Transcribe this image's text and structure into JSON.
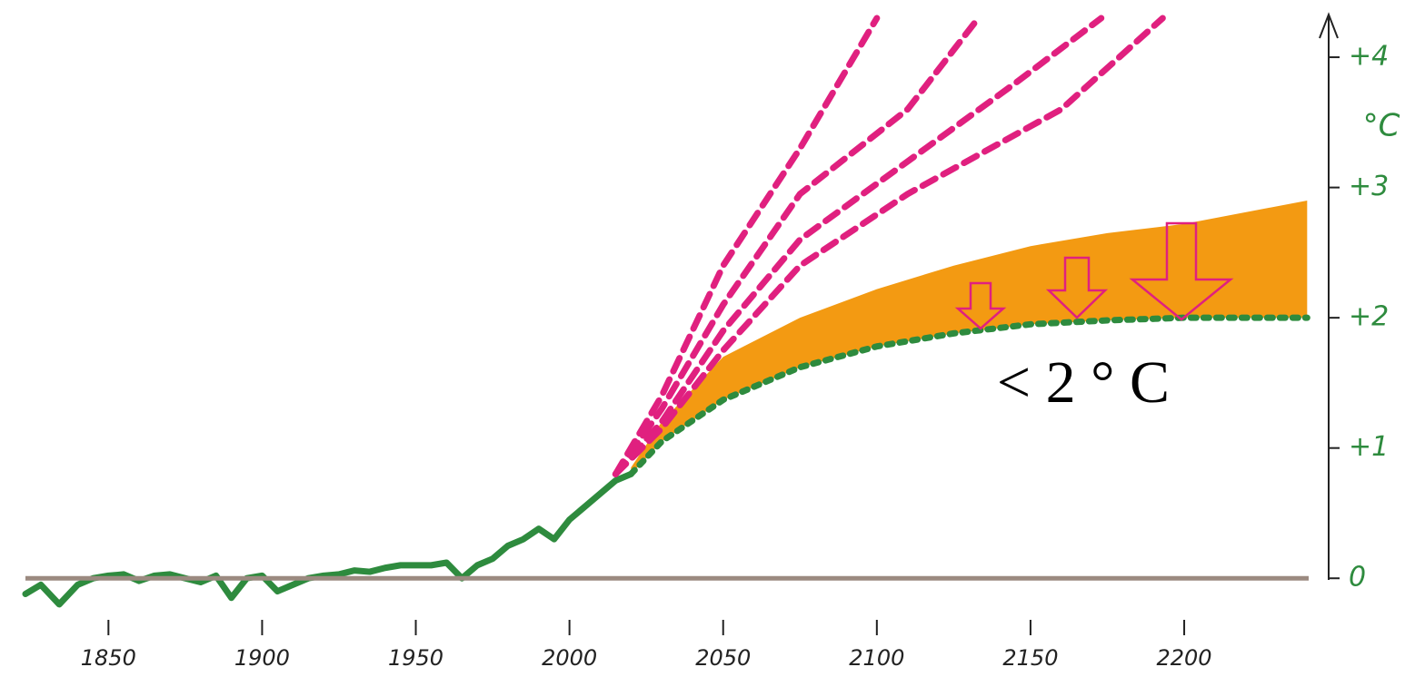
{
  "chart_data": {
    "type": "line",
    "xlim": [
      1823,
      2247
    ],
    "ylim": [
      -0.5,
      4.3
    ],
    "xticks": [
      1850,
      1900,
      1950,
      2000,
      2050,
      2100,
      2150,
      2200
    ],
    "yticks": [
      0,
      {
        "value": 1,
        "label": "+1"
      },
      {
        "value": 2,
        "label": "+2"
      },
      {
        "value": 3,
        "label": "+3"
      },
      {
        "value": 4,
        "label": "+4"
      }
    ],
    "y_unit_label": "°C",
    "annotation": "< 2 ° C",
    "axis_color": "#222222",
    "tick_label_color": "#2e8b3e",
    "zero_line_color": "#9b8a80",
    "band": {
      "color": "#f39a12",
      "x": [
        2020,
        2030,
        2050,
        2075,
        2100,
        2125,
        2150,
        2175,
        2200,
        2240
      ],
      "upper": [
        0.85,
        1.2,
        1.7,
        2.0,
        2.22,
        2.4,
        2.55,
        2.65,
        2.72,
        2.9
      ],
      "lower": [
        0.8,
        1.05,
        1.37,
        1.62,
        1.78,
        1.88,
        1.95,
        1.98,
        2.0,
        2.0
      ]
    },
    "series": [
      {
        "color": "#2e8b3e",
        "style": "solid",
        "x": [
          1823,
          1828,
          1834,
          1840,
          1845,
          1850,
          1855,
          1860,
          1865,
          1870,
          1875,
          1880,
          1885,
          1890,
          1895,
          1900,
          1905,
          1910,
          1915,
          1920,
          1925,
          1930,
          1935,
          1940,
          1945,
          1950,
          1955,
          1960,
          1965,
          1970,
          1975,
          1980,
          1985,
          1990,
          1995,
          2000,
          2005,
          2010,
          2015,
          2020
        ],
        "values": [
          -0.12,
          -0.05,
          -0.2,
          -0.05,
          0.0,
          0.02,
          0.03,
          -0.02,
          0.02,
          0.03,
          0.0,
          -0.03,
          0.02,
          -0.15,
          0.0,
          0.02,
          -0.1,
          -0.05,
          0.0,
          0.02,
          0.03,
          0.06,
          0.05,
          0.08,
          0.1,
          0.1,
          0.1,
          0.12,
          0.0,
          0.1,
          0.15,
          0.25,
          0.3,
          0.38,
          0.3,
          0.45,
          0.55,
          0.65,
          0.75,
          0.8
        ]
      },
      {
        "color": "#e0207f",
        "style": "dashed",
        "x": [
          2015,
          2030,
          2050,
          2075,
          2100
        ],
        "values": [
          0.8,
          1.4,
          2.4,
          3.3,
          4.3
        ]
      },
      {
        "color": "#e0207f",
        "style": "dashed",
        "x": [
          2015,
          2030,
          2050,
          2075,
          2110,
          2133
        ],
        "values": [
          0.8,
          1.3,
          2.1,
          2.95,
          3.6,
          4.3
        ]
      },
      {
        "color": "#e0207f",
        "style": "dashed",
        "x": [
          2015,
          2030,
          2050,
          2075,
          2110,
          2145,
          2173
        ],
        "values": [
          0.8,
          1.2,
          1.9,
          2.6,
          3.2,
          3.8,
          4.3
        ]
      },
      {
        "color": "#e0207f",
        "style": "dashed",
        "x": [
          2015,
          2030,
          2050,
          2075,
          2110,
          2160,
          2193
        ],
        "values": [
          0.8,
          1.15,
          1.75,
          2.4,
          2.95,
          3.6,
          4.3
        ]
      },
      {
        "color": "#2e8b3e",
        "style": "dotted",
        "x": [
          2020,
          2030,
          2050,
          2075,
          2100,
          2125,
          2150,
          2175,
          2200,
          2240
        ],
        "values": [
          0.8,
          1.05,
          1.37,
          1.62,
          1.78,
          1.88,
          1.95,
          1.98,
          2.0,
          2.0
        ]
      }
    ]
  }
}
